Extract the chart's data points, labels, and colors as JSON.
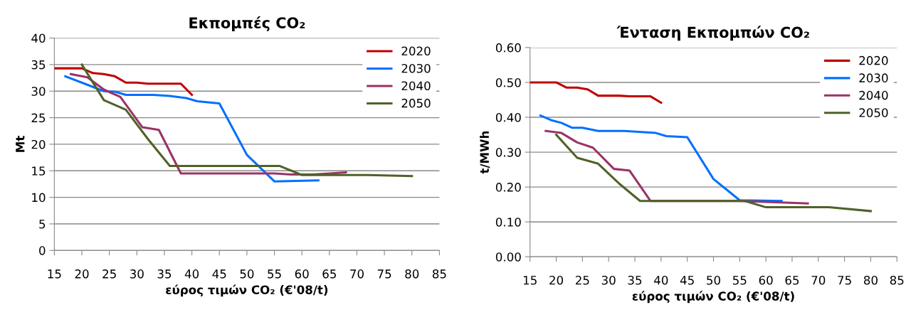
{
  "chart_data": [
    {
      "type": "line",
      "title": "Εκπομπές CO₂",
      "xlabel": "εύρος τιμών CO₂ (€'08/t)",
      "ylabel": "Mt",
      "xlim": [
        15,
        85
      ],
      "xticks": [
        15,
        20,
        25,
        30,
        35,
        40,
        45,
        50,
        55,
        60,
        65,
        70,
        75,
        80,
        85
      ],
      "ylim": [
        0,
        40
      ],
      "yticks": [
        0,
        5,
        10,
        15,
        20,
        25,
        30,
        35,
        40
      ],
      "grid": "y",
      "legend": "top right",
      "marker": "none",
      "line_style": "solid",
      "series": [
        {
          "name": "2020",
          "color": "#c00000",
          "x": [
            15,
            20,
            22,
            24,
            26,
            28,
            30,
            32,
            38,
            40
          ],
          "values": [
            34.3,
            34.3,
            33.4,
            33.2,
            32.8,
            31.6,
            31.6,
            31.4,
            31.4,
            29.3
          ]
        },
        {
          "name": "2030",
          "color": "#0070ff",
          "x": [
            17,
            21,
            24,
            26,
            28,
            33,
            36,
            39,
            41,
            45,
            50,
            55,
            63
          ],
          "values": [
            32.8,
            31.2,
            30,
            29.9,
            29.3,
            29.3,
            29.1,
            28.7,
            28.1,
            27.7,
            18,
            13,
            13.2
          ]
        },
        {
          "name": "2040",
          "color": "#993366",
          "x": [
            18,
            21,
            24,
            27,
            31,
            34,
            38,
            55,
            58,
            62,
            68
          ],
          "values": [
            33.2,
            32.6,
            30.3,
            28.9,
            23.2,
            22.7,
            14.5,
            14.5,
            14.3,
            14.3,
            14.7
          ]
        },
        {
          "name": "2050",
          "color": "#4f6228",
          "x": [
            20,
            24,
            28,
            32,
            36,
            56,
            60,
            72,
            80
          ],
          "values": [
            35,
            28.3,
            26.5,
            21,
            15.9,
            15.9,
            14.2,
            14.2,
            14
          ]
        }
      ]
    },
    {
      "type": "line",
      "title": "Ένταση Εκπομπών CO₂",
      "xlabel": "εύρος τιμών CO₂ (€'08/t)",
      "ylabel": "t/MWh",
      "xlim": [
        15,
        85
      ],
      "xticks": [
        15,
        20,
        25,
        30,
        35,
        40,
        45,
        50,
        55,
        60,
        65,
        70,
        75,
        80,
        85
      ],
      "ylim": [
        0,
        0.6
      ],
      "yticks": [
        {
          "value": 0,
          "label": "0.00"
        },
        {
          "value": 0.1,
          "label": "0.10"
        },
        {
          "value": 0.2,
          "label": "0.20"
        },
        {
          "value": 0.3,
          "label": "0.30"
        },
        {
          "value": 0.4,
          "label": "0.40"
        },
        {
          "value": 0.5,
          "label": "0.50"
        },
        {
          "value": 0.6,
          "label": "0.60"
        }
      ],
      "grid": "y",
      "legend": "top right",
      "marker": "none",
      "line_style": "solid",
      "series": [
        {
          "name": "2020",
          "color": "#c00000",
          "x": [
            15,
            20,
            22,
            24,
            26,
            28,
            32,
            34,
            38,
            40
          ],
          "values": [
            0.5,
            0.5,
            0.485,
            0.485,
            0.48,
            0.462,
            0.462,
            0.46,
            0.46,
            0.442
          ]
        },
        {
          "name": "2030",
          "color": "#0070ff",
          "x": [
            17,
            19,
            21,
            23,
            25,
            28,
            33,
            39,
            41,
            45,
            50,
            55,
            63
          ],
          "values": [
            0.405,
            0.392,
            0.384,
            0.37,
            0.37,
            0.361,
            0.361,
            0.355,
            0.346,
            0.343,
            0.223,
            0.162,
            0.16
          ]
        },
        {
          "name": "2040",
          "color": "#993366",
          "x": [
            18,
            21,
            24,
            27,
            31,
            34,
            38,
            55,
            68
          ],
          "values": [
            0.361,
            0.355,
            0.328,
            0.313,
            0.252,
            0.247,
            0.16,
            0.16,
            0.153
          ]
        },
        {
          "name": "2050",
          "color": "#4f6228",
          "x": [
            20,
            24,
            28,
            32,
            36,
            56,
            60,
            72,
            80
          ],
          "values": [
            0.35,
            0.284,
            0.267,
            0.21,
            0.16,
            0.16,
            0.142,
            0.142,
            0.131
          ]
        }
      ]
    }
  ]
}
